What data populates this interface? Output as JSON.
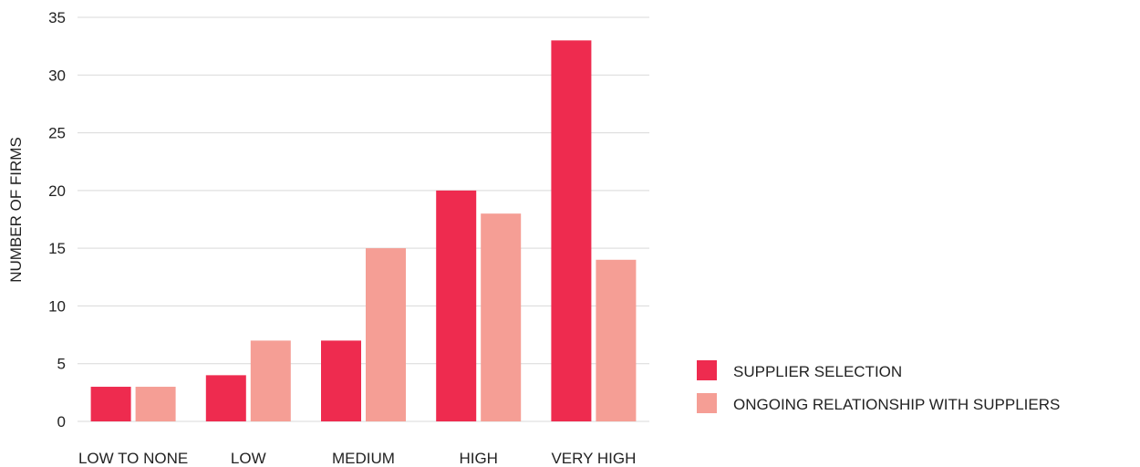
{
  "chart_data": {
    "type": "bar",
    "title": "",
    "xlabel": "",
    "ylabel": "NUMBER OF FIRMS",
    "ylim": [
      0,
      35
    ],
    "yticks": [
      0,
      5,
      10,
      15,
      20,
      25,
      30,
      35
    ],
    "grid": true,
    "legend_position": "bottom-right",
    "categories": [
      "LOW TO NONE",
      "LOW",
      "MEDIUM",
      "HIGH",
      "VERY HIGH"
    ],
    "series": [
      {
        "name": "SUPPLIER SELECTION",
        "color": "#ee2b4f",
        "values": [
          3,
          4,
          7,
          20,
          33
        ]
      },
      {
        "name": "ONGOING RELATIONSHIP WITH SUPPLIERS",
        "color": "#f59e95",
        "values": [
          3,
          7,
          15,
          18,
          14
        ]
      }
    ]
  }
}
